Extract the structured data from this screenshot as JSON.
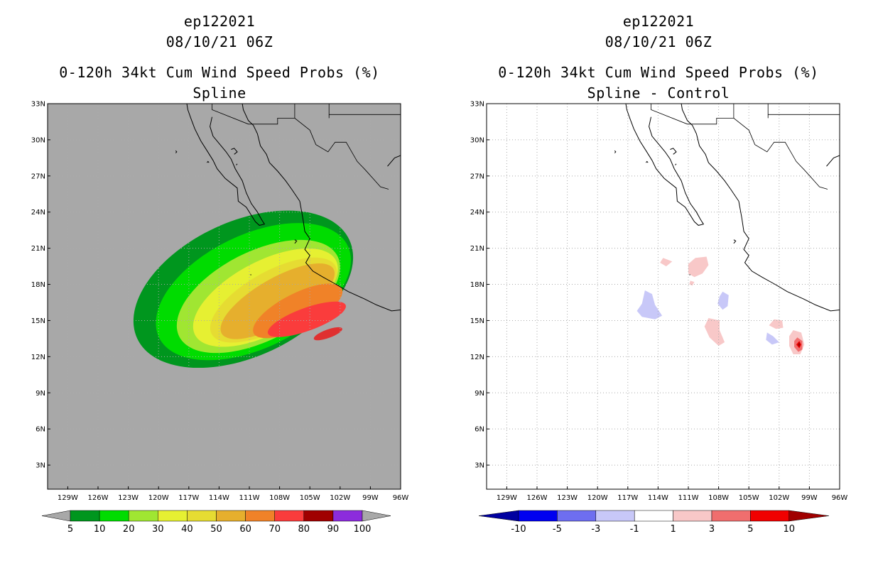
{
  "colors": {
    "land_bg": "#a8a8a8",
    "white_bg": "#ffffff",
    "grid": "#aaaaaa",
    "coast": "#000000"
  },
  "chart_data": [
    {
      "type": "heatmap",
      "storm_id": "ep122021",
      "datetime": "08/10/21 06Z",
      "title": "0-120h 34kt Cum Wind Speed Probs (%)",
      "subtitle": "Spline",
      "xlim": [
        -131,
        -96
      ],
      "ylim": [
        1,
        33
      ],
      "x_ticks": [
        -129,
        -126,
        -123,
        -120,
        -117,
        -114,
        -111,
        -108,
        -105,
        -102,
        -99,
        -96
      ],
      "x_tick_labels": [
        "129W",
        "126W",
        "123W",
        "120W",
        "117W",
        "114W",
        "111W",
        "108W",
        "105W",
        "102W",
        "99W",
        "96W"
      ],
      "y_ticks": [
        3,
        6,
        9,
        12,
        15,
        18,
        21,
        24,
        27,
        30,
        33
      ],
      "y_tick_labels": [
        "3N",
        "6N",
        "9N",
        "12N",
        "15N",
        "18N",
        "21N",
        "24N",
        "27N",
        "30N",
        "33N"
      ],
      "grid": true,
      "background": "#a8a8a8",
      "colorbar": {
        "labels": [
          "5",
          "10",
          "20",
          "30",
          "40",
          "50",
          "60",
          "70",
          "80",
          "90",
          "100"
        ],
        "colors": [
          "#00961e",
          "#00dc00",
          "#a0e632",
          "#e6f032",
          "#e6dc32",
          "#e6af2d",
          "#f08228",
          "#fa3c3c",
          "#a00000",
          "#8c2cdc"
        ],
        "extend_color": "#a8a8a8"
      },
      "levels": [
        {
          "threshold": 5,
          "color": "#00961e",
          "center": [
            -111.6,
            17.6
          ],
          "a": 11.6,
          "b": 5.6,
          "rot": -25
        },
        {
          "threshold": 10,
          "color": "#00dc00",
          "center": [
            -110.6,
            17.4
          ],
          "a": 10.4,
          "b": 4.7,
          "rot": -26
        },
        {
          "threshold": 20,
          "color": "#a0e632",
          "center": [
            -110.1,
            17.0
          ],
          "a": 8.8,
          "b": 3.7,
          "rot": -27
        },
        {
          "threshold": 30,
          "color": "#e6f032",
          "center": [
            -109.4,
            16.9
          ],
          "a": 7.9,
          "b": 3.0,
          "rot": -28
        },
        {
          "threshold": 40,
          "color": "#e6dc32",
          "center": [
            -108.6,
            16.7
          ],
          "a": 7.0,
          "b": 2.4,
          "rot": -29
        },
        {
          "threshold": 50,
          "color": "#e6af2d",
          "center": [
            -108.2,
            16.6
          ],
          "a": 6.4,
          "b": 1.9,
          "rot": -30
        },
        {
          "threshold": 60,
          "color": "#f08228",
          "center": [
            -106.2,
            15.8
          ],
          "a": 4.9,
          "b": 1.45,
          "rot": -27
        },
        {
          "threshold": 70,
          "color": "#fa3c3c",
          "center": [
            -105.3,
            15.1
          ],
          "a": 4.1,
          "b": 0.95,
          "rot": -20
        },
        {
          "threshold": 80,
          "color": "#e03030",
          "center": [
            -103.2,
            13.9
          ],
          "a": 1.5,
          "b": 0.35,
          "rot": -20
        }
      ]
    },
    {
      "type": "heatmap",
      "storm_id": "ep122021",
      "datetime": "08/10/21 06Z",
      "title": "0-120h 34kt Cum Wind Speed Probs (%)",
      "subtitle": "Spline - Control",
      "xlim": [
        -131,
        -96
      ],
      "ylim": [
        1,
        33
      ],
      "x_ticks": [
        -129,
        -126,
        -123,
        -120,
        -117,
        -114,
        -111,
        -108,
        -105,
        -102,
        -99,
        -96
      ],
      "x_tick_labels": [
        "129W",
        "126W",
        "123W",
        "120W",
        "117W",
        "114W",
        "111W",
        "108W",
        "105W",
        "102W",
        "99W",
        "96W"
      ],
      "y_ticks": [
        3,
        6,
        9,
        12,
        15,
        18,
        21,
        24,
        27,
        30,
        33
      ],
      "y_tick_labels": [
        "3N",
        "6N",
        "9N",
        "12N",
        "15N",
        "18N",
        "21N",
        "24N",
        "27N",
        "30N",
        "33N"
      ],
      "grid": true,
      "background": "#ffffff",
      "colorbar": {
        "labels": [
          "-10",
          "-5",
          "-3",
          "-1",
          "1",
          "3",
          "5",
          "10"
        ],
        "colors": [
          "#0000a0",
          "#0000f0",
          "#6e6ef0",
          "#c8c8f8",
          "#ffffff",
          "#f8c8c8",
          "#f06e6e",
          "#f00000",
          "#a00000"
        ],
        "extend_left": "#0000a0",
        "extend_right": "#a00000"
      },
      "blobs": [
        {
          "value": 2,
          "color": "#f8c8c8",
          "points": [
            [
              -113.5,
              20.2
            ],
            [
              -112.6,
              19.9
            ],
            [
              -113.2,
              19.5
            ],
            [
              -113.8,
              19.8
            ]
          ]
        },
        {
          "value": 2,
          "color": "#f8c8c8",
          "points": [
            [
              -110.3,
              20.2
            ],
            [
              -109.2,
              20.3
            ],
            [
              -109.0,
              19.6
            ],
            [
              -109.6,
              18.9
            ],
            [
              -110.4,
              18.6
            ],
            [
              -111.0,
              18.9
            ],
            [
              -111.0,
              19.7
            ]
          ]
        },
        {
          "value": 2,
          "color": "#f8c8c8",
          "points": [
            [
              -110.8,
              18.3
            ],
            [
              -110.4,
              18.2
            ],
            [
              -110.6,
              17.9
            ],
            [
              -110.9,
              18.0
            ]
          ]
        },
        {
          "value": -2,
          "color": "#c8c8f8",
          "points": [
            [
              -115.3,
              17.5
            ],
            [
              -114.6,
              17.2
            ],
            [
              -114.3,
              16.3
            ],
            [
              -113.6,
              15.4
            ],
            [
              -114.3,
              15.1
            ],
            [
              -115.6,
              15.3
            ],
            [
              -116.1,
              15.8
            ],
            [
              -115.6,
              16.4
            ]
          ]
        },
        {
          "value": -2,
          "color": "#c8c8f8",
          "points": [
            [
              -107.6,
              17.4
            ],
            [
              -107.0,
              17.1
            ],
            [
              -107.1,
              16.2
            ],
            [
              -107.6,
              15.9
            ],
            [
              -108.1,
              16.4
            ],
            [
              -107.9,
              17.0
            ]
          ]
        },
        {
          "value": 2,
          "color": "#f8c8c8",
          "points": [
            [
              -109.0,
              15.2
            ],
            [
              -107.9,
              15.0
            ],
            [
              -107.9,
              14.2
            ],
            [
              -107.4,
              13.2
            ],
            [
              -108.0,
              12.9
            ],
            [
              -108.9,
              13.6
            ],
            [
              -109.4,
              14.5
            ]
          ]
        },
        {
          "value": 2,
          "color": "#f8c8c8",
          "points": [
            [
              -102.5,
              15.1
            ],
            [
              -101.7,
              15.0
            ],
            [
              -101.6,
              14.4
            ],
            [
              -102.3,
              14.3
            ],
            [
              -103.0,
              14.6
            ]
          ]
        },
        {
          "value": -2,
          "color": "#c8c8f8",
          "points": [
            [
              -103.2,
              14.0
            ],
            [
              -102.6,
              13.7
            ],
            [
              -102.0,
              13.2
            ],
            [
              -102.7,
              13.0
            ],
            [
              -103.3,
              13.4
            ]
          ]
        },
        {
          "value": 2,
          "color": "#f8c8c8",
          "points": [
            [
              -100.6,
              14.2
            ],
            [
              -99.8,
              14.0
            ],
            [
              -99.5,
              13.0
            ],
            [
              -99.9,
              12.2
            ],
            [
              -100.6,
              12.2
            ],
            [
              -101.0,
              12.9
            ],
            [
              -101.0,
              13.7
            ]
          ]
        },
        {
          "value": 4,
          "color": "#f06e6e",
          "points": [
            [
              -100.2,
              13.6
            ],
            [
              -99.7,
              13.3
            ],
            [
              -99.7,
              12.6
            ],
            [
              -100.1,
              12.4
            ],
            [
              -100.5,
              12.8
            ],
            [
              -100.5,
              13.3
            ]
          ]
        },
        {
          "value": 7,
          "color": "#f00000",
          "points": [
            [
              -100.0,
              13.3
            ],
            [
              -99.8,
              13.0
            ],
            [
              -100.0,
              12.7
            ],
            [
              -100.3,
              13.0
            ]
          ]
        },
        {
          "value": 12,
          "color": "#a00000",
          "points": [
            [
              -100.0,
              13.2
            ],
            [
              -99.9,
              13.0
            ],
            [
              -100.0,
              12.8
            ],
            [
              -100.15,
              13.0
            ]
          ]
        }
      ]
    }
  ]
}
